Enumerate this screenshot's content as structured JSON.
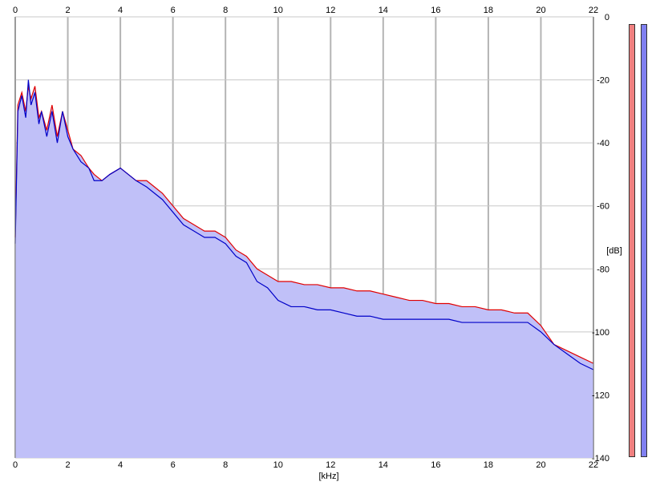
{
  "chart_data": {
    "type": "area",
    "x_unit_label": "[kHz]",
    "y_unit_label": "[dB]",
    "xlim": [
      0,
      22
    ],
    "ylim": [
      -140,
      0
    ],
    "x_ticks": [
      0,
      2,
      4,
      6,
      8,
      10,
      12,
      14,
      16,
      18,
      20,
      22
    ],
    "y_ticks": [
      0,
      -20,
      -40,
      -60,
      -80,
      -100,
      -120,
      -140
    ],
    "grid": true,
    "series": [
      {
        "color": "#e00000",
        "x": [
          0,
          0.1,
          0.25,
          0.4,
          0.5,
          0.6,
          0.75,
          0.9,
          1.0,
          1.2,
          1.4,
          1.6,
          1.8,
          2.0,
          2.2,
          2.5,
          2.8,
          3.0,
          3.3,
          3.6,
          4.0,
          4.3,
          4.6,
          5.0,
          5.3,
          5.6,
          6.0,
          6.4,
          6.8,
          7.2,
          7.6,
          8.0,
          8.4,
          8.8,
          9.2,
          9.6,
          10.0,
          10.5,
          11.0,
          11.5,
          12.0,
          12.5,
          13.0,
          13.5,
          14.0,
          14.5,
          15.0,
          15.5,
          16.0,
          16.5,
          17.0,
          17.5,
          18.0,
          18.5,
          19.0,
          19.5,
          20.0,
          20.5,
          21.0,
          21.5,
          22.0
        ],
        "y": [
          -70,
          -28,
          -24,
          -30,
          -22,
          -26,
          -22,
          -32,
          -30,
          -36,
          -28,
          -38,
          -30,
          -36,
          -42,
          -44,
          -48,
          -50,
          -52,
          -50,
          -48,
          -50,
          -52,
          -52,
          -54,
          -56,
          -60,
          -64,
          -66,
          -68,
          -68,
          -70,
          -74,
          -76,
          -80,
          -82,
          -84,
          -84,
          -85,
          -85,
          -86,
          -86,
          -87,
          -87,
          -88,
          -89,
          -90,
          -90,
          -91,
          -91,
          -92,
          -92,
          -93,
          -93,
          -94,
          -94,
          -98,
          -104,
          -106,
          -108,
          -110
        ]
      },
      {
        "color": "#0000c8",
        "x": [
          0,
          0.1,
          0.25,
          0.4,
          0.5,
          0.6,
          0.75,
          0.9,
          1.0,
          1.2,
          1.4,
          1.6,
          1.8,
          2.0,
          2.2,
          2.5,
          2.8,
          3.0,
          3.3,
          3.6,
          4.0,
          4.3,
          4.6,
          5.0,
          5.3,
          5.6,
          6.0,
          6.4,
          6.8,
          7.2,
          7.6,
          8.0,
          8.4,
          8.8,
          9.2,
          9.6,
          10.0,
          10.5,
          11.0,
          11.5,
          12.0,
          12.5,
          13.0,
          13.5,
          14.0,
          14.5,
          15.0,
          15.5,
          16.0,
          16.5,
          17.0,
          17.5,
          18.0,
          18.5,
          19.0,
          19.5,
          20.0,
          20.5,
          21.0,
          21.5,
          22.0
        ],
        "y": [
          -72,
          -30,
          -25,
          -32,
          -20,
          -28,
          -24,
          -34,
          -30,
          -38,
          -30,
          -40,
          -30,
          -38,
          -42,
          -46,
          -48,
          -52,
          -52,
          -50,
          -48,
          -50,
          -52,
          -54,
          -56,
          -58,
          -62,
          -66,
          -68,
          -70,
          -70,
          -72,
          -76,
          -78,
          -84,
          -86,
          -90,
          -92,
          -92,
          -93,
          -93,
          -94,
          -95,
          -95,
          -96,
          -96,
          -96,
          -96,
          -96,
          -96,
          -97,
          -97,
          -97,
          -97,
          -97,
          -97,
          -100,
          -104,
          -107,
          -110,
          -112
        ]
      }
    ]
  },
  "meters": {
    "left_color": "#f08080",
    "right_color": "#8080f0"
  }
}
